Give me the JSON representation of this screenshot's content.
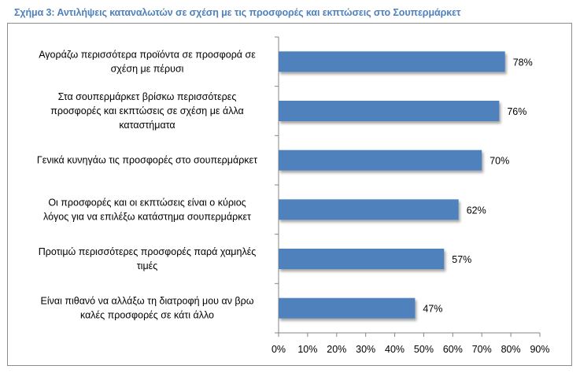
{
  "chart_data": {
    "type": "bar",
    "orientation": "horizontal",
    "title": "Σχήμα 3: Αντιλήψεις καταναλωτών σε σχέση με τις προσφορές και εκπτώσεις στο Σουπερμάρκετ",
    "categories": [
      [
        "Αγοράζω περισσότερα προϊόντα σε προσφορά σε",
        "σχέση με πέρυσι"
      ],
      [
        "Στα σουπερμάρκετ βρίσκω περισσότερες",
        "προσφορές και εκπτώσεις σε σχέση με άλλα",
        "καταστήματα"
      ],
      [
        "Γενικά κυνηγάω τις προσφορές στο σουπερμάρκετ"
      ],
      [
        "Οι προσφορές και οι εκπτώσεις είναι ο κύριος",
        "λόγος για να επιλέξω κατάστημα σουπερμάρκετ"
      ],
      [
        "Προτιμώ περισσότερες προσφορές παρά χαμηλές",
        "τιμές"
      ],
      [
        "Είναι πιθανό να αλλάξω τη διατροφή μου αν βρω",
        "καλές προσφορές σε κάτι άλλο"
      ]
    ],
    "values": [
      78,
      76,
      70,
      62,
      57,
      47
    ],
    "data_labels": [
      "78%",
      "76%",
      "70%",
      "62%",
      "57%",
      "47%"
    ],
    "xlim": [
      0,
      90
    ],
    "xticks": [
      "0%",
      "10%",
      "20%",
      "30%",
      "40%",
      "50%",
      "60%",
      "70%",
      "80%",
      "90%"
    ],
    "grid": false,
    "bar_color": "#4f81bd",
    "title_color": "#4f81bd"
  }
}
